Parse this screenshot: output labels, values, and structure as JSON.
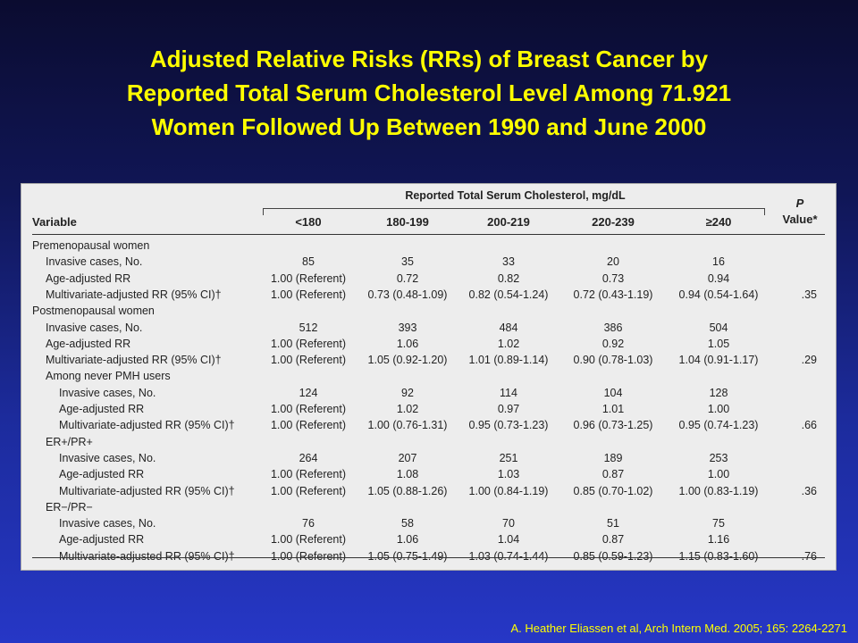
{
  "title_lines": [
    "Adjusted Relative Risks (RRs) of Breast Cancer by",
    "Reported Total Serum Cholesterol Level Among 71.921",
    "Women Followed Up Between 1990 and June 2000"
  ],
  "table": {
    "group_header": "Reported Total Serum Cholesterol, mg/dL",
    "variable_header": "Variable",
    "columns": [
      "<180",
      "180-199",
      "200-219",
      "220-239",
      "≥240"
    ],
    "p_header_line1": "P",
    "p_header_line2": "Value*",
    "rows": [
      {
        "label": "Premenopausal women",
        "indent": 0,
        "values": [],
        "p": ""
      },
      {
        "label": "Invasive cases, No.",
        "indent": 1,
        "values": [
          "85",
          "35",
          "33",
          "20",
          "16"
        ],
        "p": ""
      },
      {
        "label": "Age-adjusted RR",
        "indent": 1,
        "values": [
          "1.00 (Referent)",
          "0.72",
          "0.82",
          "0.73",
          "0.94"
        ],
        "p": ""
      },
      {
        "label": "Multivariate-adjusted RR (95% CI)†",
        "indent": 1,
        "values": [
          "1.00 (Referent)",
          "0.73 (0.48-1.09)",
          "0.82 (0.54-1.24)",
          "0.72 (0.43-1.19)",
          "0.94 (0.54-1.64)"
        ],
        "p": ".35"
      },
      {
        "label": "Postmenopausal women",
        "indent": 0,
        "values": [],
        "p": ""
      },
      {
        "label": "Invasive cases, No.",
        "indent": 1,
        "values": [
          "512",
          "393",
          "484",
          "386",
          "504"
        ],
        "p": ""
      },
      {
        "label": "Age-adjusted RR",
        "indent": 1,
        "values": [
          "1.00 (Referent)",
          "1.06",
          "1.02",
          "0.92",
          "1.05"
        ],
        "p": ""
      },
      {
        "label": "Multivariate-adjusted RR (95% CI)†",
        "indent": 1,
        "values": [
          "1.00 (Referent)",
          "1.05 (0.92-1.20)",
          "1.01 (0.89-1.14)",
          "0.90 (0.78-1.03)",
          "1.04 (0.91-1.17)"
        ],
        "p": ".29"
      },
      {
        "label": "Among never PMH users",
        "indent": 1,
        "values": [],
        "p": ""
      },
      {
        "label": "Invasive cases, No.",
        "indent": 2,
        "values": [
          "124",
          "92",
          "114",
          "104",
          "128"
        ],
        "p": ""
      },
      {
        "label": "Age-adjusted RR",
        "indent": 2,
        "values": [
          "1.00 (Referent)",
          "1.02",
          "0.97",
          "1.01",
          "1.00"
        ],
        "p": ""
      },
      {
        "label": "Multivariate-adjusted RR (95% CI)†",
        "indent": 2,
        "values": [
          "1.00 (Referent)",
          "1.00 (0.76-1.31)",
          "0.95 (0.73-1.23)",
          "0.96 (0.73-1.25)",
          "0.95 (0.74-1.23)"
        ],
        "p": ".66"
      },
      {
        "label": "ER+/PR+",
        "indent": 1,
        "values": [],
        "p": ""
      },
      {
        "label": "Invasive cases, No.",
        "indent": 2,
        "values": [
          "264",
          "207",
          "251",
          "189",
          "253"
        ],
        "p": ""
      },
      {
        "label": "Age-adjusted RR",
        "indent": 2,
        "values": [
          "1.00 (Referent)",
          "1.08",
          "1.03",
          "0.87",
          "1.00"
        ],
        "p": ""
      },
      {
        "label": "Multivariate-adjusted RR (95% CI)†",
        "indent": 2,
        "values": [
          "1.00 (Referent)",
          "1.05 (0.88-1.26)",
          "1.00 (0.84-1.19)",
          "0.85 (0.70-1.02)",
          "1.00 (0.83-1.19)"
        ],
        "p": ".36"
      },
      {
        "label": "ER−/PR−",
        "indent": 1,
        "values": [],
        "p": ""
      },
      {
        "label": "Invasive cases, No.",
        "indent": 2,
        "values": [
          "76",
          "58",
          "70",
          "51",
          "75"
        ],
        "p": ""
      },
      {
        "label": "Age-adjusted RR",
        "indent": 2,
        "values": [
          "1.00 (Referent)",
          "1.06",
          "1.04",
          "0.87",
          "1.16"
        ],
        "p": ""
      },
      {
        "label": "Multivariate-adjusted RR (95% CI)†",
        "indent": 2,
        "values": [
          "1.00 (Referent)",
          "1.05 (0.75-1.49)",
          "1.03 (0.74-1.44)",
          "0.85 (0.59-1.23)",
          "1.15 (0.83-1.60)"
        ],
        "p": ".76"
      }
    ]
  },
  "citation": "A. Heather Eliassen et al, Arch Intern Med. 2005; 165: 2264-2271"
}
